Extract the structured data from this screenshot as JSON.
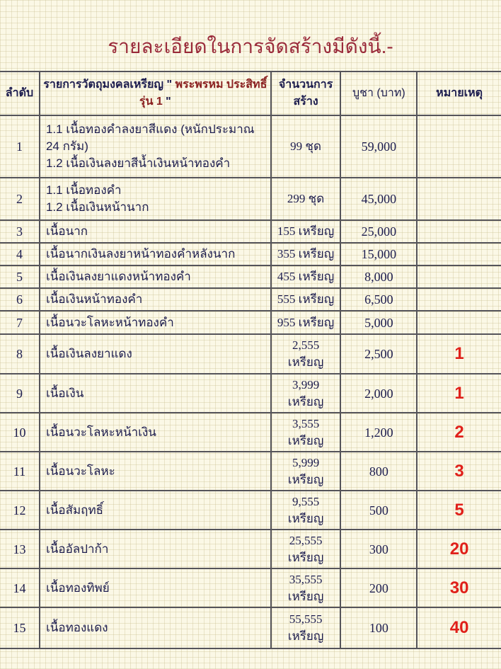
{
  "title": "รายละเอียดในการจัดสร้างมีดังนี้.-",
  "headers": {
    "no": "ลำดับ",
    "item_prefix": "รายการวัตถุมงคลเหรียญ \" ",
    "item_red": "พระพรหม ประสิทธิ์ รุ่น 1",
    "item_suffix": " \"",
    "qty": "จำนวนการสร้าง",
    "price": "บูชา (บาท)",
    "note": "หมายเหตุ"
  },
  "rows": [
    {
      "no": "1",
      "lines": [
        "1.1 เนื้อทองคำลงยาสีแดง (หนักประมาณ",
        "24 กรัม)",
        "1.2 เนื้อเงินลงยาสีน้ำเงินหน้าทองคำ"
      ],
      "qty": "99 ชุด",
      "price": "59,000",
      "note": ""
    },
    {
      "no": "2",
      "lines": [
        "1.1 เนื้อทองคำ",
        "1.2 เนื้อเงินหน้านาก"
      ],
      "qty": "299 ชุด",
      "price": "45,000",
      "note": ""
    },
    {
      "no": "3",
      "lines": [
        "เนื้อนาก"
      ],
      "qty": "155 เหรียญ",
      "price": "25,000",
      "note": ""
    },
    {
      "no": "4",
      "lines": [
        "เนื้อนากเงินลงยาหน้าทองคำหลังนาก"
      ],
      "qty": "355 เหรียญ",
      "price": "15,000",
      "note": ""
    },
    {
      "no": "5",
      "lines": [
        "เนื้อเงินลงยาแดงหน้าทองคำ"
      ],
      "qty": "455 เหรียญ",
      "price": "8,000",
      "note": ""
    },
    {
      "no": "6",
      "lines": [
        "เนื้อเงินหน้าทองคำ"
      ],
      "qty": "555 เหรียญ",
      "price": "6,500",
      "note": ""
    },
    {
      "no": "7",
      "lines": [
        "เนื้อนวะโลหะหน้าทองคำ"
      ],
      "qty": "955 เหรียญ",
      "price": "5,000",
      "note": ""
    },
    {
      "no": "8",
      "lines": [
        "เนื้อเงินลงยาแดง"
      ],
      "qty": "2,555 เหรียญ",
      "price": "2,500",
      "note": "1"
    },
    {
      "no": "9",
      "lines": [
        "เนื้อเงิน"
      ],
      "qty": "3,999 เหรียญ",
      "price": "2,000",
      "note": "1"
    },
    {
      "no": "10",
      "lines": [
        "เนื้อนวะโลหะหน้าเงิน"
      ],
      "qty": "3,555 เหรียญ",
      "price": "1,200",
      "note": "2"
    },
    {
      "no": "11",
      "lines": [
        "เนื้อนวะโลหะ"
      ],
      "qty": "5,999 เหรียญ",
      "price": "800",
      "note": "3"
    },
    {
      "no": "12",
      "lines": [
        "เนื้อสัมฤทธิ์"
      ],
      "qty": "9,555 เหรียญ",
      "price": "500",
      "note": "5"
    },
    {
      "no": "13",
      "lines": [
        "เนื้ออัลปาก้า"
      ],
      "qty": "25,555 เหรียญ",
      "price": "300",
      "note": "20"
    },
    {
      "no": "14",
      "lines": [
        "เนื้อทองทิพย์"
      ],
      "qty": "35,555 เหรียญ",
      "price": "200",
      "note": "30"
    },
    {
      "no": "15",
      "lines": [
        "เนื้อทองแดง"
      ],
      "qty": "55,555 เหรียญ",
      "price": "100",
      "note": "40"
    }
  ],
  "colors": {
    "title": "#9a2a3a",
    "note": "#e0201a",
    "text": "#1d1d4f"
  }
}
